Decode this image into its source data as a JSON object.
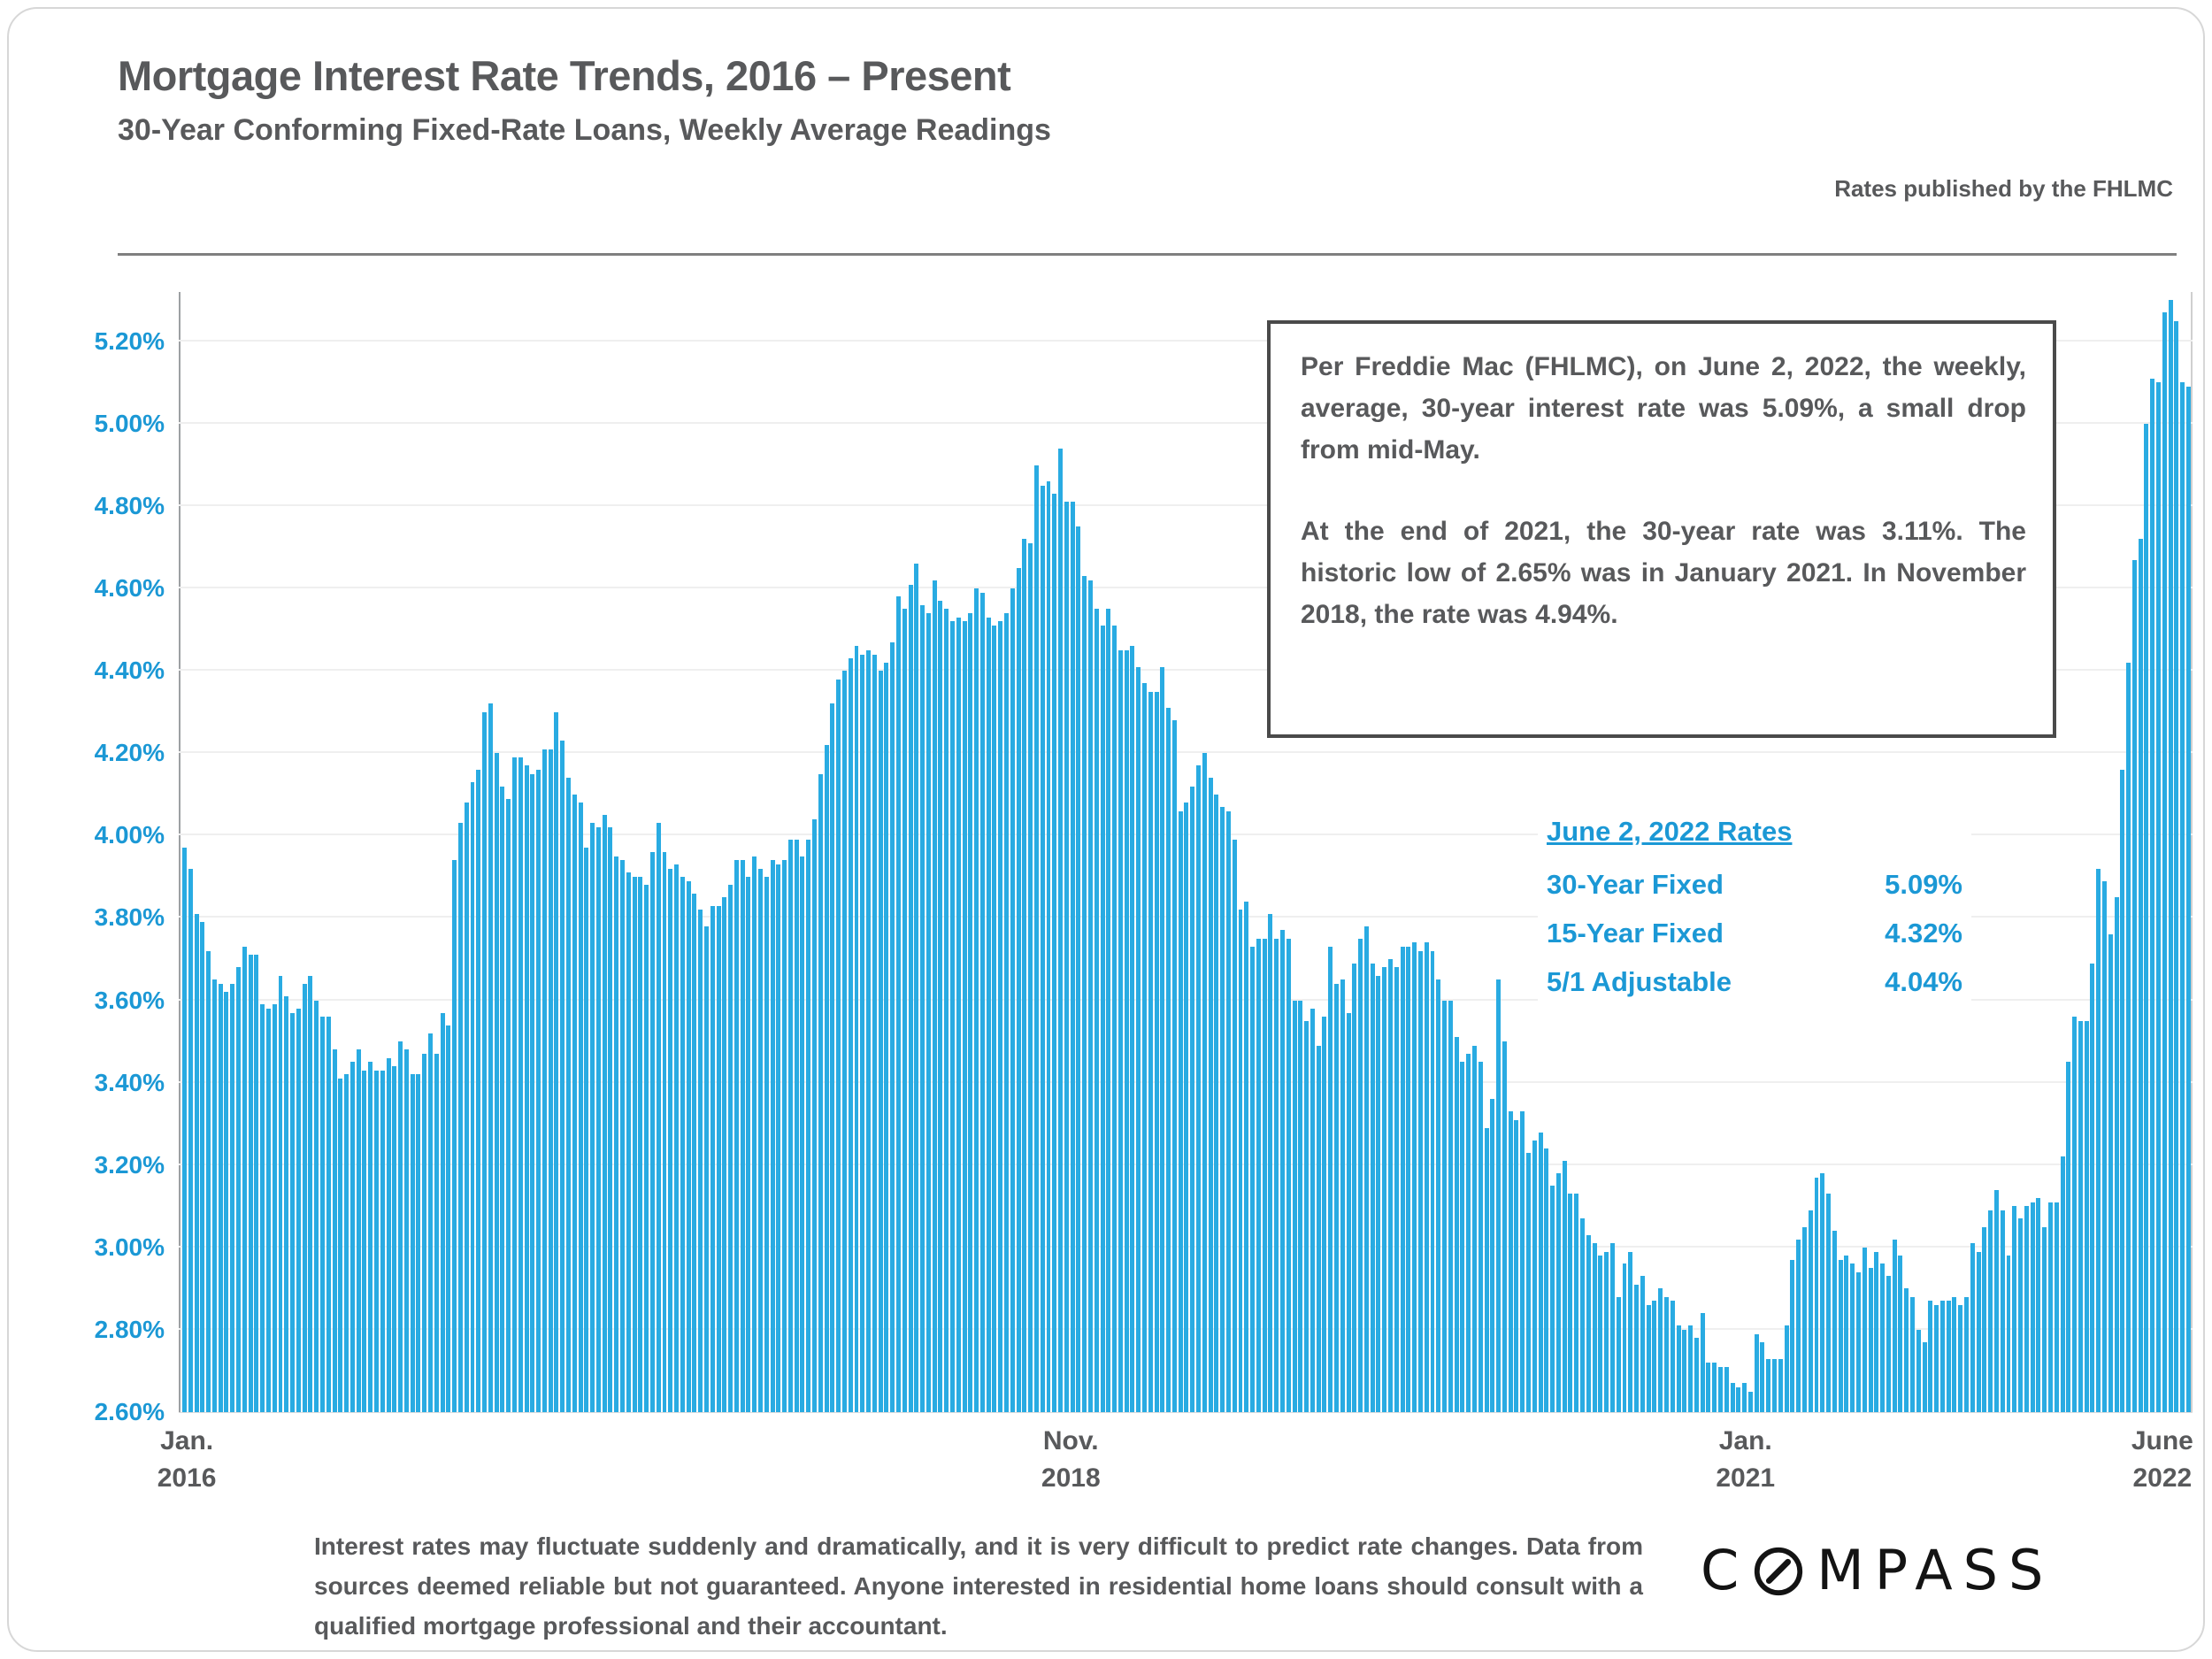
{
  "header": {
    "title": "Mortgage Interest Rate Trends, 2016 – Present",
    "subtitle": "30-Year Conforming Fixed-Rate Loans, Weekly Average Readings",
    "source_note": "Rates published by the FHLMC"
  },
  "info_box": {
    "paragraph1": "Per Freddie Mac (FHLMC), on June 2, 2022, the weekly, average, 30-year interest rate was 5.09%, a small drop from mid-May.",
    "paragraph2": "At the end of 2021, the 30-year rate was 3.11%. The historic low of 2.65% was in January 2021. In November 2018, the rate was 4.94%."
  },
  "rates_panel": {
    "heading": "June 2, 2022 Rates",
    "rows": [
      {
        "label": "30-Year Fixed",
        "value": "5.09%"
      },
      {
        "label": "15-Year Fixed",
        "value": "4.32%"
      },
      {
        "label": "5/1 Adjustable",
        "value": "4.04%"
      }
    ]
  },
  "footer": {
    "disclaimer": "Interest rates may fluctuate suddenly and dramatically, and it is very difficult to predict rate changes. Data from sources deemed reliable but not guaranteed. Anyone interested in residential home loans should consult with a qualified mortgage professional and their accountant.",
    "logo_text": "COMPASS",
    "logo_prefix": "C",
    "logo_suffix": "MPASS"
  },
  "colors": {
    "bar": "#29abe2",
    "axis_label_blue": "#1b98d5",
    "text_gray": "#58595b",
    "gridline": "#efefef",
    "box_border": "#4a4a4a"
  },
  "chart_data": {
    "type": "bar",
    "title": "Mortgage Interest Rate Trends, 2016 – Present",
    "subtitle": "30-Year Conforming Fixed-Rate Loans, Weekly Average Readings",
    "unit": "percent",
    "frequency": "weekly",
    "x_start": "January 2016",
    "x_end": "June 2, 2022",
    "ylim": [
      2.6,
      5.32
    ],
    "grid": "horizontal",
    "y_ticks": [
      "2.60%",
      "2.80%",
      "3.00%",
      "3.20%",
      "3.40%",
      "3.60%",
      "3.80%",
      "4.00%",
      "4.20%",
      "4.40%",
      "4.60%",
      "4.80%",
      "5.00%",
      "5.20%"
    ],
    "x_ticks": [
      {
        "line1": "Jan.",
        "line2": "2016",
        "frac": 0.004
      },
      {
        "line1": "Nov.",
        "line2": "2018",
        "frac": 0.443
      },
      {
        "line1": "Jan.",
        "line2": "2021",
        "frac": 0.778
      },
      {
        "line1": "June",
        "line2": "2022",
        "frac": 0.985
      }
    ],
    "annotations": [
      "Historic low 2.65% (January 2021)",
      "4.94% (November 2018)",
      "5.09% (June 2, 2022)"
    ],
    "values": [
      3.97,
      3.92,
      3.81,
      3.79,
      3.72,
      3.65,
      3.64,
      3.62,
      3.64,
      3.68,
      3.73,
      3.71,
      3.71,
      3.59,
      3.58,
      3.59,
      3.66,
      3.61,
      3.57,
      3.58,
      3.64,
      3.66,
      3.6,
      3.56,
      3.56,
      3.48,
      3.41,
      3.42,
      3.45,
      3.48,
      3.43,
      3.45,
      3.43,
      3.43,
      3.46,
      3.44,
      3.5,
      3.48,
      3.42,
      3.42,
      3.47,
      3.52,
      3.47,
      3.57,
      3.54,
      3.94,
      4.03,
      4.08,
      4.13,
      4.16,
      4.3,
      4.32,
      4.2,
      4.12,
      4.09,
      4.19,
      4.19,
      4.17,
      4.15,
      4.16,
      4.21,
      4.21,
      4.3,
      4.23,
      4.14,
      4.1,
      4.08,
      3.97,
      4.03,
      4.02,
      4.05,
      4.02,
      3.95,
      3.94,
      3.91,
      3.9,
      3.9,
      3.88,
      3.96,
      4.03,
      3.96,
      3.92,
      3.93,
      3.9,
      3.89,
      3.86,
      3.82,
      3.78,
      3.83,
      3.83,
      3.85,
      3.88,
      3.94,
      3.94,
      3.9,
      3.95,
      3.92,
      3.9,
      3.94,
      3.93,
      3.94,
      3.99,
      3.99,
      3.95,
      3.99,
      4.04,
      4.15,
      4.22,
      4.32,
      4.38,
      4.4,
      4.43,
      4.46,
      4.44,
      4.45,
      4.44,
      4.4,
      4.42,
      4.47,
      4.58,
      4.55,
      4.61,
      4.66,
      4.56,
      4.54,
      4.62,
      4.57,
      4.55,
      4.52,
      4.53,
      4.52,
      4.54,
      4.6,
      4.59,
      4.53,
      4.51,
      4.52,
      4.54,
      4.6,
      4.65,
      4.72,
      4.71,
      4.9,
      4.85,
      4.86,
      4.83,
      4.94,
      4.81,
      4.81,
      4.75,
      4.63,
      4.62,
      4.55,
      4.51,
      4.55,
      4.51,
      4.45,
      4.45,
      4.46,
      4.41,
      4.37,
      4.35,
      4.35,
      4.41,
      4.31,
      4.28,
      4.06,
      4.08,
      4.12,
      4.17,
      4.2,
      4.14,
      4.1,
      4.07,
      4.06,
      3.99,
      3.82,
      3.84,
      3.73,
      3.75,
      3.75,
      3.81,
      3.75,
      3.77,
      3.75,
      3.6,
      3.6,
      3.55,
      3.58,
      3.49,
      3.56,
      3.73,
      3.64,
      3.65,
      3.57,
      3.69,
      3.75,
      3.78,
      3.69,
      3.66,
      3.68,
      3.7,
      3.68,
      3.73,
      3.73,
      3.74,
      3.72,
      3.74,
      3.72,
      3.65,
      3.6,
      3.6,
      3.51,
      3.45,
      3.47,
      3.49,
      3.45,
      3.29,
      3.36,
      3.65,
      3.5,
      3.33,
      3.31,
      3.33,
      3.23,
      3.26,
      3.28,
      3.24,
      3.15,
      3.18,
      3.21,
      3.13,
      3.13,
      3.07,
      3.03,
      3.01,
      2.98,
      2.99,
      3.01,
      2.88,
      2.96,
      2.99,
      2.91,
      2.93,
      2.86,
      2.87,
      2.9,
      2.88,
      2.87,
      2.81,
      2.8,
      2.81,
      2.78,
      2.84,
      2.72,
      2.72,
      2.71,
      2.71,
      2.67,
      2.66,
      2.67,
      2.65,
      2.79,
      2.77,
      2.73,
      2.73,
      2.73,
      2.81,
      2.97,
      3.02,
      3.05,
      3.09,
      3.17,
      3.18,
      3.13,
      3.04,
      2.97,
      2.98,
      2.96,
      2.94,
      3.0,
      2.95,
      2.99,
      2.96,
      2.93,
      3.02,
      2.98,
      2.9,
      2.88,
      2.8,
      2.77,
      2.87,
      2.86,
      2.87,
      2.87,
      2.88,
      2.86,
      2.88,
      3.01,
      2.99,
      3.05,
      3.09,
      3.14,
      3.09,
      2.98,
      3.1,
      3.07,
      3.1,
      3.11,
      3.12,
      3.05,
      3.11,
      3.11,
      3.22,
      3.45,
      3.56,
      3.55,
      3.55,
      3.69,
      3.92,
      3.89,
      3.76,
      3.85,
      4.16,
      4.42,
      4.67,
      4.72,
      5.0,
      5.11,
      5.1,
      5.27,
      5.3,
      5.25,
      5.1,
      5.09
    ]
  }
}
